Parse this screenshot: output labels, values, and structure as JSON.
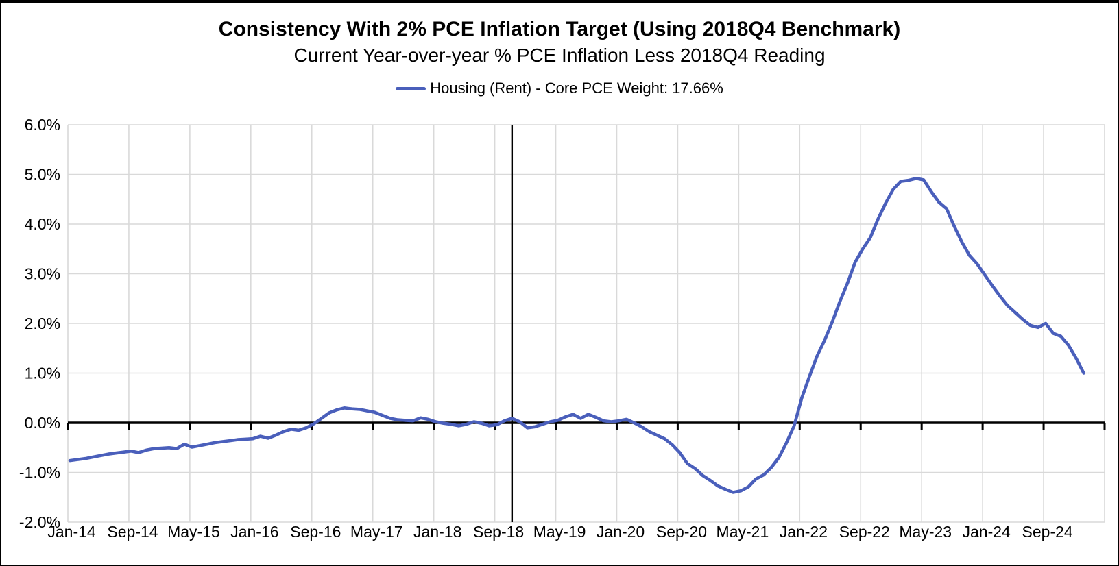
{
  "header": {
    "title": "Consistency With 2% PCE Inflation Target (Using 2018Q4 Benchmark)",
    "subtitle": "Current Year-over-year % PCE Inflation Less 2018Q4 Reading"
  },
  "legend": {
    "label": "Housing (Rent) - Core PCE Weight: 17.66%"
  },
  "colors": {
    "series_line": "#4a5fbb",
    "gridline": "#d9d9d9",
    "axis": "#000000",
    "background": "#ffffff"
  },
  "chart_data": {
    "type": "line",
    "title": "Consistency With 2% PCE Inflation Target (Using 2018Q4 Benchmark)",
    "subtitle": "Current Year-over-year % PCE Inflation Less 2018Q4 Reading",
    "grid": true,
    "legend_position": "top",
    "ylim": [
      -2.0,
      6.0
    ],
    "y_tick_labels": [
      "6.0%",
      "5.0%",
      "4.0%",
      "3.0%",
      "2.0%",
      "1.0%",
      "0.0%",
      "-1.0%",
      "-2.0%"
    ],
    "y_tick_values": [
      6,
      5,
      4,
      3,
      2,
      1,
      0,
      -1,
      -2
    ],
    "x_tick_labels": [
      "Jan-14",
      "Sep-14",
      "May-15",
      "Jan-16",
      "Sep-16",
      "May-17",
      "Jan-18",
      "Sep-18",
      "May-19",
      "Jan-20",
      "Sep-20",
      "May-21",
      "Jan-22",
      "Sep-22",
      "May-23",
      "Jan-24",
      "Sep-24"
    ],
    "x_months_per_tick": 8,
    "benchmark": {
      "period_label": "2018Q4",
      "month_index": 58
    },
    "zero_axis_emphasized": true,
    "series": [
      {
        "name": "Housing (Rent) - Core PCE Weight: 17.66%",
        "color": "#4a5fbb",
        "start": "Jan-2014",
        "end": "Feb-2025",
        "frequency": "monthly",
        "unit": "percent",
        "values": [
          -0.76,
          -0.74,
          -0.72,
          -0.69,
          -0.66,
          -0.63,
          -0.61,
          -0.59,
          -0.57,
          -0.6,
          -0.55,
          -0.52,
          -0.51,
          -0.5,
          -0.52,
          -0.43,
          -0.49,
          -0.46,
          -0.43,
          -0.4,
          -0.38,
          -0.36,
          -0.34,
          -0.33,
          -0.32,
          -0.27,
          -0.31,
          -0.25,
          -0.18,
          -0.13,
          -0.15,
          -0.1,
          -0.02,
          0.09,
          0.2,
          0.26,
          0.3,
          0.28,
          0.27,
          0.24,
          0.21,
          0.15,
          0.09,
          0.06,
          0.05,
          0.04,
          0.1,
          0.07,
          0.02,
          -0.01,
          -0.03,
          -0.06,
          -0.03,
          0.02,
          -0.01,
          -0.06,
          -0.04,
          0.04,
          0.09,
          0.02,
          -0.1,
          -0.08,
          -0.03,
          0.02,
          0.05,
          0.12,
          0.17,
          0.09,
          0.17,
          0.11,
          0.04,
          0.02,
          0.04,
          0.07,
          0.0,
          -0.08,
          -0.18,
          -0.25,
          -0.32,
          -0.44,
          -0.6,
          -0.82,
          -0.92,
          -1.06,
          -1.16,
          -1.27,
          -1.34,
          -1.4,
          -1.37,
          -1.29,
          -1.13,
          -1.05,
          -0.9,
          -0.7,
          -0.4,
          -0.06,
          0.5,
          0.93,
          1.34,
          1.66,
          2.03,
          2.44,
          2.81,
          3.23,
          3.5,
          3.73,
          4.1,
          4.42,
          4.7,
          4.86,
          4.88,
          4.92,
          4.89,
          4.65,
          4.44,
          4.31,
          3.96,
          3.64,
          3.37,
          3.2,
          2.98,
          2.76,
          2.55,
          2.36,
          2.22,
          2.08,
          1.96,
          1.92,
          2.0,
          1.8,
          1.74,
          1.56,
          1.3,
          1.0
        ]
      }
    ]
  }
}
